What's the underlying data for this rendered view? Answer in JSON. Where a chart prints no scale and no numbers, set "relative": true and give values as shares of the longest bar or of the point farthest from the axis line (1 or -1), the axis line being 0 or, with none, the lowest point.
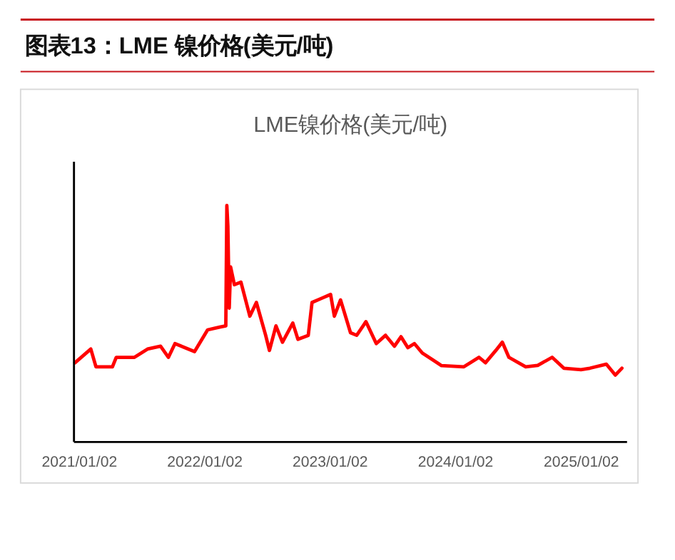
{
  "chart_data": {
    "type": "line",
    "title": "图表13：LME 镍价格(美元/吨)",
    "subtitle": "LME镍价格(美元/吨)",
    "relative": true,
    "marker": "none",
    "line_style": "solid",
    "xlim": [
      "2020-12-17",
      "2025-05-15"
    ],
    "xticks": [
      {
        "value": "2021-01-02",
        "label": "2021/01/02"
      },
      {
        "value": "2022-01-02",
        "label": "2022/01/02"
      },
      {
        "value": "2023-01-02",
        "label": "2023/01/02"
      },
      {
        "value": "2024-01-02",
        "label": "2024/01/02"
      },
      {
        "value": "2025-01-02",
        "label": "2025/01/02"
      }
    ],
    "x": [
      "2020-12-20",
      "2021-02-04",
      "2021-02-19",
      "2021-04-08",
      "2021-04-19",
      "2021-06-11",
      "2021-07-19",
      "2021-08-26",
      "2021-09-18",
      "2021-10-07",
      "2021-12-03",
      "2022-01-10",
      "2022-02-14",
      "2022-03-04",
      "2022-03-07",
      "2022-03-10",
      "2022-03-14",
      "2022-03-18",
      "2022-03-29",
      "2022-04-17",
      "2022-05-13",
      "2022-06-01",
      "2022-06-28",
      "2022-07-09",
      "2022-07-28",
      "2022-08-16",
      "2022-09-15",
      "2022-09-30",
      "2022-10-30",
      "2022-11-10",
      "2022-12-07",
      "2023-01-03",
      "2023-01-14",
      "2023-02-01",
      "2023-03-02",
      "2023-03-20",
      "2023-04-16",
      "2023-05-16",
      "2023-06-12",
      "2023-07-08",
      "2023-07-27",
      "2023-08-16",
      "2023-09-04",
      "2023-09-27",
      "2023-11-22",
      "2024-01-26",
      "2024-03-10",
      "2024-03-29",
      "2024-04-28",
      "2024-05-17",
      "2024-06-05",
      "2024-07-24",
      "2024-08-28",
      "2024-10-09",
      "2024-11-12",
      "2025-01-01",
      "2025-01-27",
      "2025-03-16",
      "2025-04-11",
      "2025-04-30"
    ],
    "series": [
      {
        "color": "#ff0000",
        "values": [
          0.335,
          0.393,
          0.318,
          0.318,
          0.358,
          0.358,
          0.393,
          0.405,
          0.358,
          0.416,
          0.382,
          0.474,
          0.486,
          0.491,
          1,
          0.913,
          0.566,
          0.74,
          0.665,
          0.676,
          0.532,
          0.59,
          0.451,
          0.387,
          0.491,
          0.422,
          0.503,
          0.434,
          0.451,
          0.59,
          0.607,
          0.624,
          0.532,
          0.601,
          0.462,
          0.451,
          0.509,
          0.416,
          0.451,
          0.405,
          0.445,
          0.399,
          0.416,
          0.376,
          0.323,
          0.318,
          0.358,
          0.335,
          0.387,
          0.422,
          0.358,
          0.318,
          0.324,
          0.358,
          0.312,
          0.306,
          0.312,
          0.329,
          0.283,
          0.312
        ]
      }
    ]
  }
}
